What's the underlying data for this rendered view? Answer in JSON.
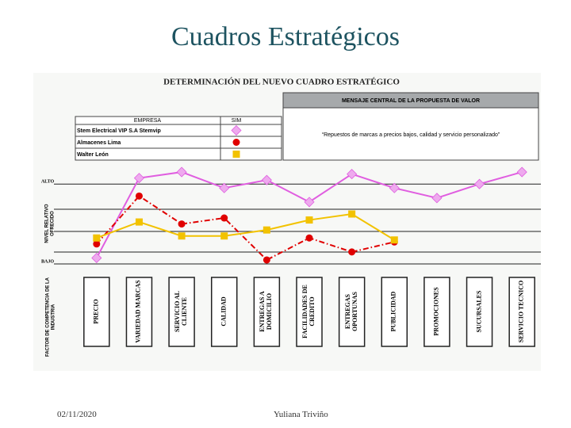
{
  "slide_title": "Cuadros Estratégicos",
  "date": "02/11/2020",
  "author": "Yuliana Triviño",
  "chart_data": {
    "type": "line",
    "title": "DETERMINACIÓN DEL NUEVO CUADRO ESTRATÉGICO",
    "message_header": "MENSAJE CENTRAL DE LA PROPUESTA DE VALOR",
    "message": "“Repuestos de marcas a precios bajos, calidad y servicio personalizado”",
    "legend_headers": [
      "EMPRESA",
      "SIM"
    ],
    "y_label": "NIVEL RELATIVO OFRECIDO",
    "x_label": "FACTOR DE COMPETENCIA DE LA INDUSTRIA",
    "categories": [
      "PRECIO",
      "VARIEDAD MARCAS",
      "SERVICIO AL CLIENTE",
      "CALIDAD",
      "ENTREGAS A DOMICILIO",
      "FACILIDADES DE CREDITO",
      "ENTREGAS OPORTUNAS",
      "PUBLICIDAD",
      "PROMOCIONES",
      "SUCURSALES",
      "SERVICIO TECNICO"
    ],
    "ylim": [
      0,
      5
    ],
    "yticks": [
      {
        "value": 0,
        "label": "BAJO"
      },
      {
        "value": 4,
        "label": "ALTO"
      }
    ],
    "series": [
      {
        "name": "Stem Electrical VIP S.A Stemvip",
        "color": "#e05ee0",
        "marker": "diamond",
        "values": [
          0.3,
          4.3,
          4.6,
          3.8,
          4.2,
          3.1,
          4.5,
          3.8,
          3.3,
          4.0,
          4.6
        ]
      },
      {
        "name": "Almacenes Lima",
        "color": "#e00000",
        "marker": "circle",
        "values": [
          1.0,
          3.4,
          2.0,
          2.3,
          0.2,
          1.3,
          0.6,
          1.1,
          null,
          null,
          null
        ]
      },
      {
        "name": "Walter León",
        "color": "#f2c200",
        "marker": "square",
        "values": [
          1.3,
          2.1,
          1.4,
          1.4,
          1.7,
          2.2,
          2.5,
          1.2,
          null,
          null,
          null
        ]
      }
    ]
  }
}
